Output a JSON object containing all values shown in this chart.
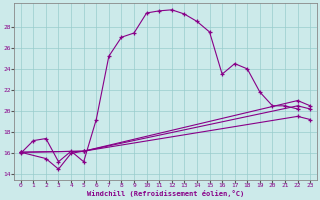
{
  "title": "",
  "xlabel": "Windchill (Refroidissement éolien,°C)",
  "ylabel": "",
  "bg_color": "#cceaea",
  "line_color": "#880088",
  "grid_color": "#99cccc",
  "xlim": [
    -0.5,
    23.5
  ],
  "ylim": [
    13.5,
    30.2
  ],
  "yticks": [
    14,
    16,
    18,
    20,
    22,
    24,
    26,
    28
  ],
  "xticks": [
    0,
    1,
    2,
    3,
    4,
    5,
    6,
    7,
    8,
    9,
    10,
    11,
    12,
    13,
    14,
    15,
    16,
    17,
    18,
    19,
    20,
    21,
    22,
    23
  ],
  "line1_x": [
    0,
    1,
    2,
    3,
    4,
    5,
    6,
    7,
    8,
    9,
    10,
    11,
    12,
    13,
    14,
    15,
    16,
    17,
    18,
    19,
    20,
    21,
    22
  ],
  "line1_y": [
    16.0,
    17.2,
    17.4,
    15.2,
    16.2,
    15.2,
    19.2,
    25.2,
    27.0,
    27.4,
    29.3,
    29.5,
    29.6,
    29.2,
    28.5,
    27.5,
    23.5,
    24.5,
    24.0,
    21.8,
    20.5,
    20.5,
    20.2
  ],
  "line2_x": [
    0,
    2,
    3,
    4,
    5,
    22,
    23
  ],
  "line2_y": [
    16.1,
    15.5,
    14.5,
    16.0,
    16.2,
    21.0,
    20.5
  ],
  "line3_x": [
    0,
    5,
    22,
    23
  ],
  "line3_y": [
    16.1,
    16.2,
    20.5,
    20.2
  ],
  "line4_x": [
    0,
    5,
    22,
    23
  ],
  "line4_y": [
    16.1,
    16.2,
    19.5,
    19.2
  ]
}
